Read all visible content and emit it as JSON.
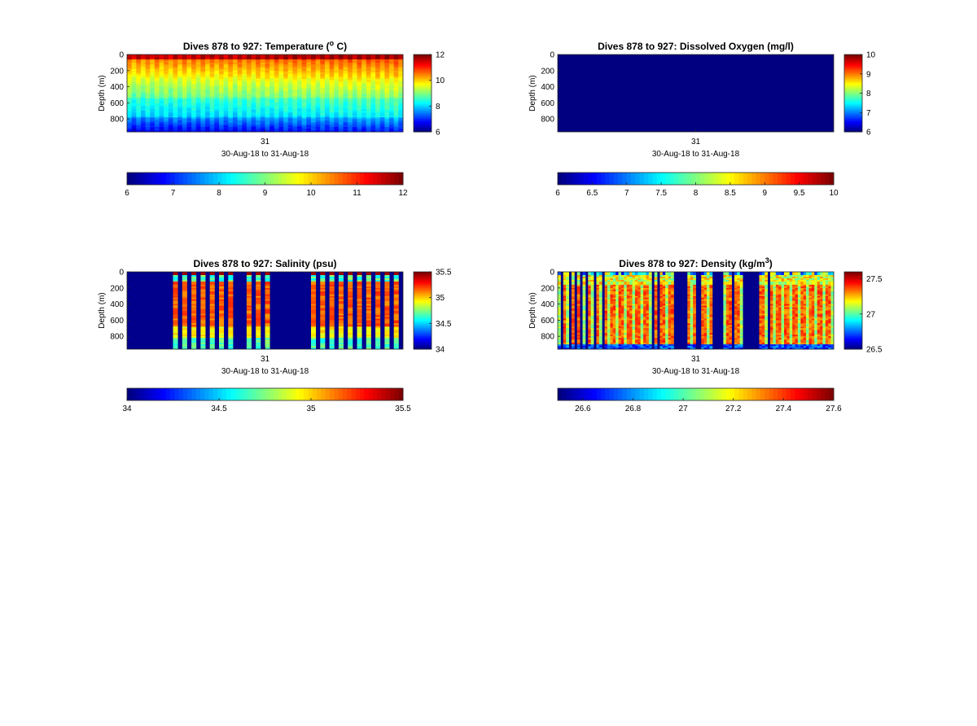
{
  "figure": {
    "background": "#ffffff"
  },
  "chart_data": [
    {
      "type": "heatmap",
      "id": "temperature",
      "title_prefix": "Dives 878 to 927: Temperature (",
      "title_sup": "o",
      "title_suffix": " C)",
      "ylabel": "Depth (m)",
      "xlabel": "30-Aug-18 to 31-Aug-18",
      "x_ticks": [
        "31"
      ],
      "y_ticks": [
        0,
        200,
        400,
        600,
        800
      ],
      "ylim": [
        0,
        960
      ],
      "clim": [
        6,
        12
      ],
      "colorbar_ticks": [
        6,
        8,
        10,
        12
      ],
      "horizontal_colorbar_ticks": [
        6,
        7,
        8,
        9,
        10,
        11,
        12
      ],
      "pattern": "temperature",
      "profiles": 60
    },
    {
      "type": "heatmap",
      "id": "oxygen",
      "title_prefix": "Dives 878 to 927: Dissolved Oxygen (mg/l)",
      "title_sup": "",
      "title_suffix": "",
      "ylabel": "Depth (m)",
      "xlabel": "30-Aug-18 to 31-Aug-18",
      "x_ticks": [
        "31"
      ],
      "y_ticks": [
        0,
        200,
        400,
        600,
        800
      ],
      "ylim": [
        0,
        960
      ],
      "clim": [
        6,
        10
      ],
      "colorbar_ticks": [
        6,
        7,
        8,
        9,
        10
      ],
      "horizontal_colorbar_ticks": [
        6,
        6.5,
        7,
        7.5,
        8,
        8.5,
        9,
        9.5,
        10
      ],
      "pattern": "uniform",
      "uniform_value": 6,
      "profiles": 60
    },
    {
      "type": "heatmap",
      "id": "salinity",
      "title_prefix": "Dives 878 to 927: Salinity (psu)",
      "title_sup": "",
      "title_suffix": "",
      "ylabel": "Depth (m)",
      "xlabel": "30-Aug-18 to 31-Aug-18",
      "x_ticks": [
        "31"
      ],
      "y_ticks": [
        0,
        200,
        400,
        600,
        800
      ],
      "ylim": [
        0,
        960
      ],
      "clim": [
        34,
        35.5
      ],
      "colorbar_ticks": [
        34,
        34.5,
        35,
        35.5
      ],
      "horizontal_colorbar_ticks": [
        34,
        34.5,
        35,
        35.5
      ],
      "pattern": "salinity",
      "profiles": 60
    },
    {
      "type": "heatmap",
      "id": "density",
      "title_prefix": "Dives 878 to 927: Density (kg/m",
      "title_sup": "3",
      "title_suffix": ")",
      "ylabel": "Depth (m)",
      "xlabel": "30-Aug-18 to 31-Aug-18",
      "x_ticks": [
        "31"
      ],
      "y_ticks": [
        0,
        200,
        400,
        600,
        800
      ],
      "ylim": [
        0,
        960
      ],
      "clim": [
        26.5,
        27.6
      ],
      "colorbar_ticks": [
        26.5,
        27,
        27.5
      ],
      "horizontal_colorbar_ticks": [
        26.6,
        26.8,
        27,
        27.2,
        27.4,
        27.6
      ],
      "horizontal_clim": [
        26.5,
        27.6
      ],
      "pattern": "density",
      "profiles": 100
    }
  ]
}
